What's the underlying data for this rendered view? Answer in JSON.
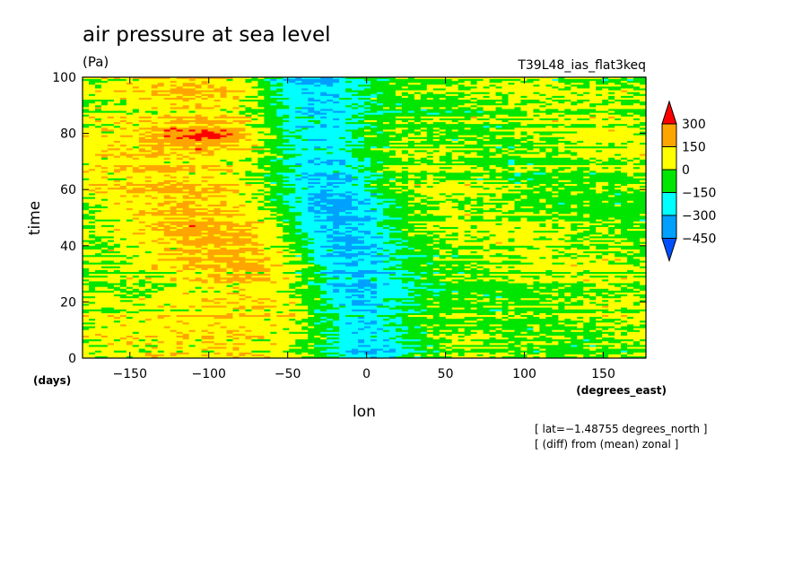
{
  "chart_data": {
    "type": "heatmap",
    "title": "air pressure at sea level",
    "units": "(Pa)",
    "experiment": "T39L48_ias_flat3keq",
    "xlabel": "lon",
    "xunits": "(degrees_east)",
    "ylabel": "time",
    "yunits": "(days)",
    "xlim": [
      -180,
      177
    ],
    "ylim": [
      0,
      100
    ],
    "xticks": [
      -150,
      -100,
      -50,
      0,
      50,
      100,
      150
    ],
    "yticks": [
      0,
      20,
      40,
      60,
      80,
      100
    ],
    "xtick_labels": [
      "−150",
      "−100",
      "−50",
      "0",
      "50",
      "100",
      "150"
    ],
    "ytick_labels": [
      "0",
      "20",
      "40",
      "60",
      "80",
      "100"
    ],
    "notes": [
      "[ lat=−1.48755 degrees_north ]",
      "[ (diff) from (mean) zonal ]"
    ],
    "colorbar": {
      "labels": [
        "300",
        "150",
        "0",
        "−150",
        "−300",
        "−450"
      ],
      "boundaries": [
        300,
        150,
        0,
        -150,
        -300,
        -450
      ],
      "bins": [
        {
          "range": "> 300",
          "color": "#ff0000"
        },
        {
          "range": "150 – 300",
          "color": "#ffa500"
        },
        {
          "range": "0 – 150",
          "color": "#ffff00"
        },
        {
          "range": "−150 – 0",
          "color": "#00e600"
        },
        {
          "range": "−300 – −150",
          "color": "#00ffff"
        },
        {
          "range": "−450 – −300",
          "color": "#00a0ff"
        },
        {
          "range": "< −450",
          "color": "#0050ff"
        }
      ]
    },
    "features": [
      {
        "description": "positive anomaly band",
        "lon_range": [
          -180,
          -40
        ],
        "value_approx": 150
      },
      {
        "description": "negative anomaly core, eastward-tilting",
        "lon_center_at_day_0": 0,
        "lon_center_at_day_85": -35,
        "value_approx": -350
      },
      {
        "description": "strong positive patch",
        "lon_range": [
          -140,
          -70
        ],
        "time_range": [
          75,
          85
        ],
        "value_approx": 320
      }
    ]
  }
}
